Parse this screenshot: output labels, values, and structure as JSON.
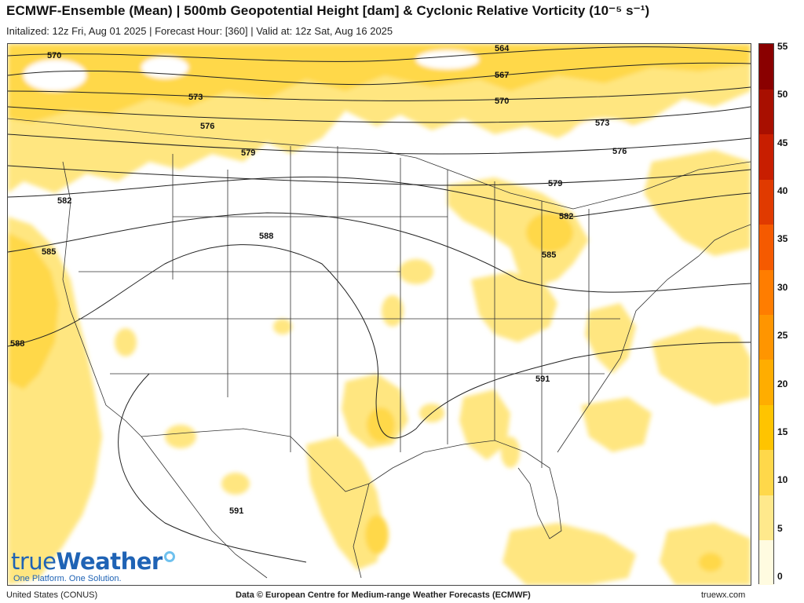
{
  "header": {
    "title": "ECMWF-Ensemble (Mean) | 500mb Geopotential Height [dam] & Cyclonic Relative Vorticity (10⁻⁵ s⁻¹)",
    "subtitle": "Initalized: 12z Fri, Aug 01 2025 | Forecast Hour: [360] | Valid at: 12z Sat, Aug 16 2025"
  },
  "map": {
    "region": "United States (CONUS)",
    "contour_labels": [
      "570",
      "573",
      "576",
      "579",
      "582",
      "585",
      "588",
      "564",
      "567",
      "570",
      "573",
      "576",
      "579",
      "582",
      "585",
      "591",
      "591",
      "588"
    ]
  },
  "colorbar": {
    "ticks": [
      "55",
      "50",
      "45",
      "40",
      "35",
      "30",
      "25",
      "20",
      "15",
      "10",
      "5",
      "0"
    ],
    "colors": [
      "#fffbe0",
      "#ffe98c",
      "#ffd84a",
      "#ffc400",
      "#ffad00",
      "#ff9500",
      "#ff7d00",
      "#f55a00",
      "#e03a00",
      "#c81e00",
      "#a80f00",
      "#8a0000"
    ]
  },
  "branding": {
    "logo_part1": "true",
    "logo_part2": "Weather",
    "tagline": "One Platform. One Solution."
  },
  "footer": {
    "left": "United States (CONUS)",
    "center": "Data © European Centre for Medium-range Weather Forecasts (ECMWF)",
    "right": "truewx.com"
  }
}
